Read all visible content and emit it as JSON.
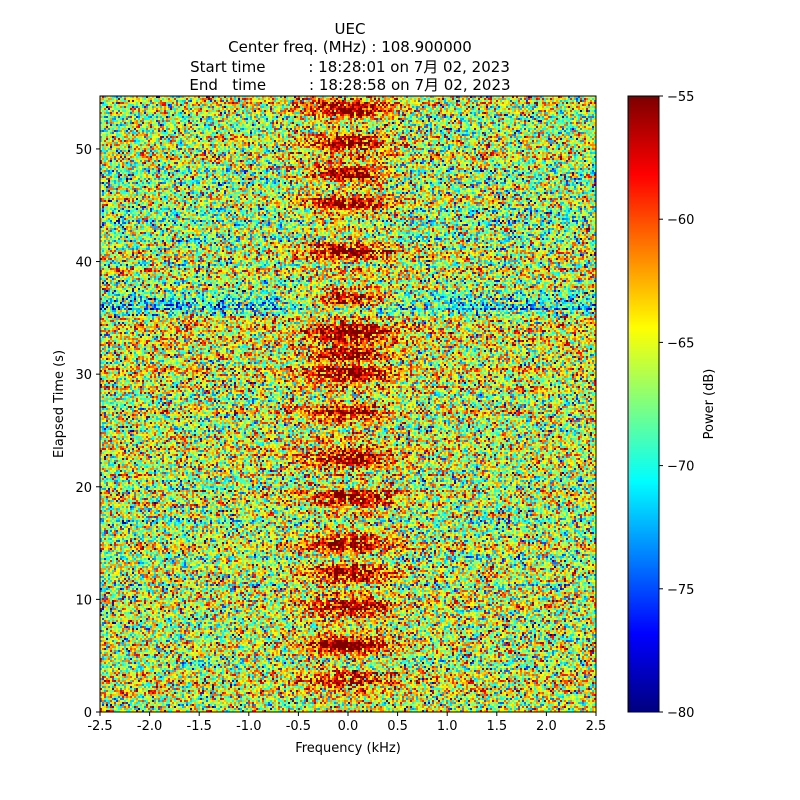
{
  "chart_data": {
    "type": "heatmap",
    "title_lines": [
      "UEC",
      "Center freq. (MHz) : 108.900000",
      "Start time         : 18:28:01 on 7月 02, 2023",
      "End   time         : 18:28:58 on 7月 02, 2023"
    ],
    "xlabel": "Frequency (kHz)",
    "ylabel": "Elapsed Time (s)",
    "xlim": [
      -2.5,
      2.5
    ],
    "ylim": [
      0,
      54.7
    ],
    "xticks": [
      -2.5,
      -2.0,
      -1.5,
      -1.0,
      -0.5,
      0.0,
      0.5,
      1.0,
      1.5,
      2.0,
      2.5
    ],
    "xtick_labels": [
      "-2.5",
      "-2.0",
      "-1.5",
      "-1.0",
      "-0.5",
      "0.0",
      "0.5",
      "1.0",
      "1.5",
      "2.0",
      "2.5"
    ],
    "yticks": [
      0,
      10,
      20,
      30,
      40,
      50
    ],
    "ytick_labels": [
      "0",
      "10",
      "20",
      "30",
      "40",
      "50"
    ],
    "colormap": "jet",
    "colorbar": {
      "label": "Power (dB)",
      "range": [
        -80,
        -55
      ],
      "ticks": [
        -55,
        -60,
        -65,
        -70,
        -75,
        -80
      ],
      "tick_labels": [
        "−55",
        "−60",
        "−65",
        "−70",
        "−75",
        "−80"
      ]
    },
    "background_power_db": -66,
    "noise_std_db": 4.5,
    "signal_center_khz": 0.0,
    "signal_halfwidth_khz": 0.3,
    "signal_bursts": [
      {
        "t": 2.8,
        "peak_db": -60
      },
      {
        "t": 6.0,
        "peak_db": -55
      },
      {
        "t": 9.2,
        "peak_db": -57
      },
      {
        "t": 12.3,
        "peak_db": -56
      },
      {
        "t": 15.0,
        "peak_db": -57
      },
      {
        "t": 19.0,
        "peak_db": -57
      },
      {
        "t": 22.5,
        "peak_db": -56
      },
      {
        "t": 26.5,
        "peak_db": -58
      },
      {
        "t": 30.0,
        "peak_db": -56
      },
      {
        "t": 31.8,
        "peak_db": -57
      },
      {
        "t": 33.6,
        "peak_db": -56
      },
      {
        "t": 36.6,
        "peak_db": -55
      },
      {
        "t": 41.0,
        "peak_db": -56
      },
      {
        "t": 45.0,
        "peak_db": -56
      },
      {
        "t": 47.8,
        "peak_db": -55
      },
      {
        "t": 50.5,
        "peak_db": -57
      },
      {
        "t": 53.5,
        "peak_db": -56
      }
    ],
    "broadband_offsets": [
      {
        "t": 36.0,
        "delta_db": -4
      },
      {
        "t": 34.0,
        "delta_db": 2
      },
      {
        "t": 30.2,
        "delta_db": 1.5
      },
      {
        "t": 2.5,
        "delta_db": 2
      },
      {
        "t": 44.0,
        "delta_db": -2
      }
    ]
  }
}
